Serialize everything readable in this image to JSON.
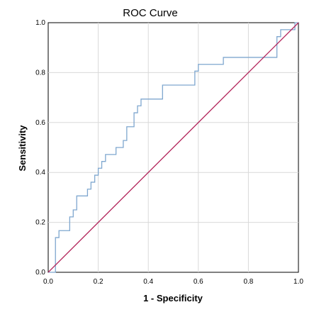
{
  "chart_data": {
    "type": "line",
    "title": "ROC Curve",
    "xlabel": "1 - Specificity",
    "ylabel": "Sensitivity",
    "xlim": [
      0,
      1
    ],
    "ylim": [
      0,
      1
    ],
    "x_ticks": [
      "0.0",
      "0.2",
      "0.4",
      "0.6",
      "0.8",
      "1.0"
    ],
    "y_ticks": [
      "0.0",
      "0.2",
      "0.4",
      "0.6",
      "0.8",
      "1.0"
    ],
    "grid": true,
    "legend": "none",
    "series": [
      {
        "color": "#7fa7cf",
        "x": [
          0.0,
          0.0,
          0.029,
          0.029,
          0.043,
          0.043,
          0.086,
          0.086,
          0.1,
          0.1,
          0.114,
          0.114,
          0.157,
          0.157,
          0.171,
          0.171,
          0.186,
          0.186,
          0.2,
          0.2,
          0.214,
          0.214,
          0.229,
          0.229,
          0.271,
          0.271,
          0.3,
          0.3,
          0.314,
          0.314,
          0.343,
          0.343,
          0.357,
          0.357,
          0.371,
          0.371,
          0.386,
          0.386,
          0.457,
          0.457,
          0.586,
          0.586,
          0.6,
          0.6,
          0.7,
          0.7,
          0.914,
          0.914,
          0.929,
          0.929,
          0.986,
          0.986,
          1.0
        ],
        "y": [
          0.0,
          0.0,
          0.0,
          0.139,
          0.139,
          0.167,
          0.167,
          0.222,
          0.222,
          0.25,
          0.25,
          0.306,
          0.306,
          0.333,
          0.333,
          0.361,
          0.361,
          0.389,
          0.389,
          0.417,
          0.417,
          0.444,
          0.444,
          0.472,
          0.472,
          0.5,
          0.5,
          0.528,
          0.528,
          0.583,
          0.583,
          0.639,
          0.639,
          0.667,
          0.667,
          0.694,
          0.694,
          0.694,
          0.694,
          0.75,
          0.75,
          0.806,
          0.806,
          0.833,
          0.833,
          0.861,
          0.861,
          0.944,
          0.944,
          0.972,
          0.972,
          1.0,
          1.0
        ]
      },
      {
        "color": "#b3245a",
        "x": [
          0.0,
          1.0
        ],
        "y": [
          0.0,
          1.0
        ]
      }
    ]
  }
}
